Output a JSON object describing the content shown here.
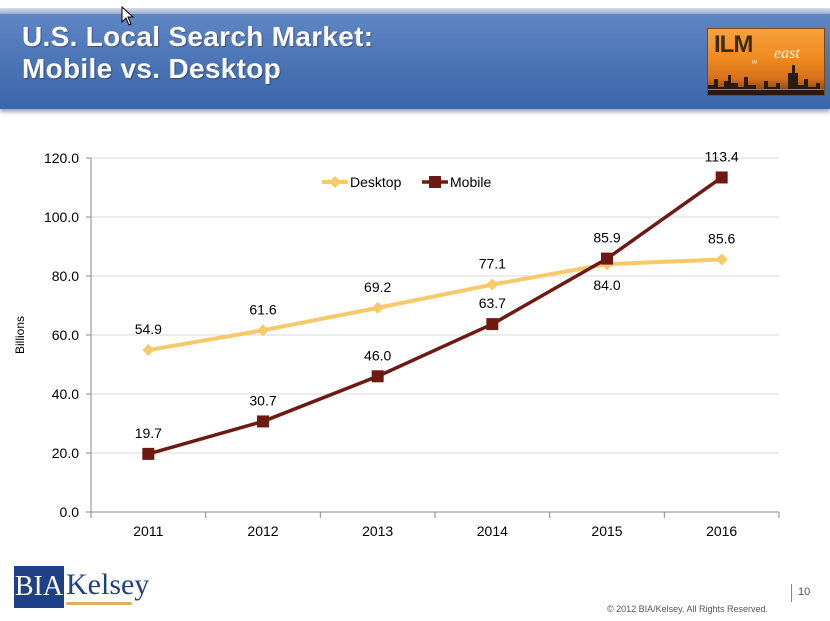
{
  "slide": {
    "title_line1": "U.S. Local Search Market:",
    "title_line2": "Mobile vs. Desktop",
    "page_number": "10",
    "copyright": "© 2012 BIA/Kelsey. All Rights Reserved."
  },
  "logo": {
    "ilm": "ILM",
    "east": "east",
    "w": "w"
  },
  "brand": {
    "bia": "BIA",
    "kelsey": "Kelsey"
  },
  "colors": {
    "header": "#4a73b6",
    "desktop": "#f7c96a",
    "mobile": "#6d1a12",
    "grid": "#d9d9d9"
  },
  "chart_data": {
    "type": "line",
    "title": "",
    "xlabel": "",
    "ylabel": "Billions",
    "ylim": [
      0,
      120
    ],
    "yticks": [
      "0.0",
      "20.0",
      "40.0",
      "60.0",
      "80.0",
      "100.0",
      "120.0"
    ],
    "yticks_values": [
      0,
      20,
      40,
      60,
      80,
      100,
      120
    ],
    "categories": [
      "2011",
      "2012",
      "2013",
      "2014",
      "2015",
      "2016"
    ],
    "legend_position": "top",
    "grid": true,
    "series": [
      {
        "name": "Desktop",
        "values": [
          54.9,
          61.6,
          69.2,
          77.1,
          84.0,
          85.6
        ],
        "labels": [
          "54.9",
          "61.6",
          "69.2",
          "77.1",
          "84.0",
          "85.6"
        ],
        "marker": "diamond"
      },
      {
        "name": "Mobile",
        "values": [
          19.7,
          30.7,
          46.0,
          63.7,
          85.9,
          113.4
        ],
        "labels": [
          "19.7",
          "30.7",
          "46.0",
          "63.7",
          "85.9",
          "113.4"
        ],
        "marker": "square"
      }
    ]
  }
}
